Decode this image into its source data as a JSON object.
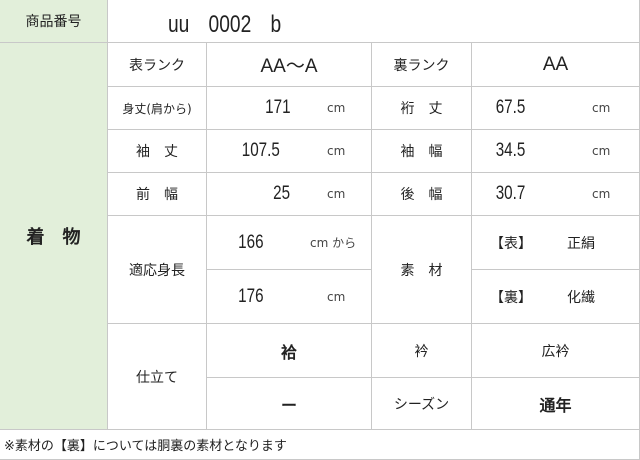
{
  "product_no": {
    "label": "商品番号",
    "value": "uu　0002　b"
  },
  "category": "着　物",
  "rows": {
    "front_rank": {
      "label": "表ランク",
      "value": "AA～A"
    },
    "back_rank": {
      "label": "裏ランク",
      "value": "AA"
    },
    "mitake": {
      "label": "身丈(肩から)",
      "value": "171",
      "unit": "cm"
    },
    "yuki": {
      "label": "裄　丈",
      "value": "67.5",
      "unit": "cm"
    },
    "sodetake": {
      "label": "袖　丈",
      "value": "107.5",
      "unit": "cm"
    },
    "sodehaba": {
      "label": "袖　幅",
      "value": "34.5",
      "unit": "cm"
    },
    "maehaba": {
      "label": "前　幅",
      "value": "25",
      "unit": "cm"
    },
    "ushirohaba": {
      "label": "後　幅",
      "value": "30.7",
      "unit": "cm"
    },
    "height": {
      "label": "適応身長",
      "min": "166",
      "min_unit": "cm から",
      "max": "176",
      "max_unit": "cm"
    },
    "material": {
      "label": "素　材",
      "front": "【表】",
      "front_value": "正絹",
      "back": "【裏】",
      "back_value": "化繊"
    },
    "tailoring": {
      "label": "仕立て",
      "value1": "袷",
      "value2": "ー"
    },
    "collar": {
      "label": "衿",
      "value": "広衿"
    },
    "season": {
      "label": "シーズン",
      "value": "通年"
    }
  },
  "note": "※素材の【裏】については胴裏の素材となります"
}
